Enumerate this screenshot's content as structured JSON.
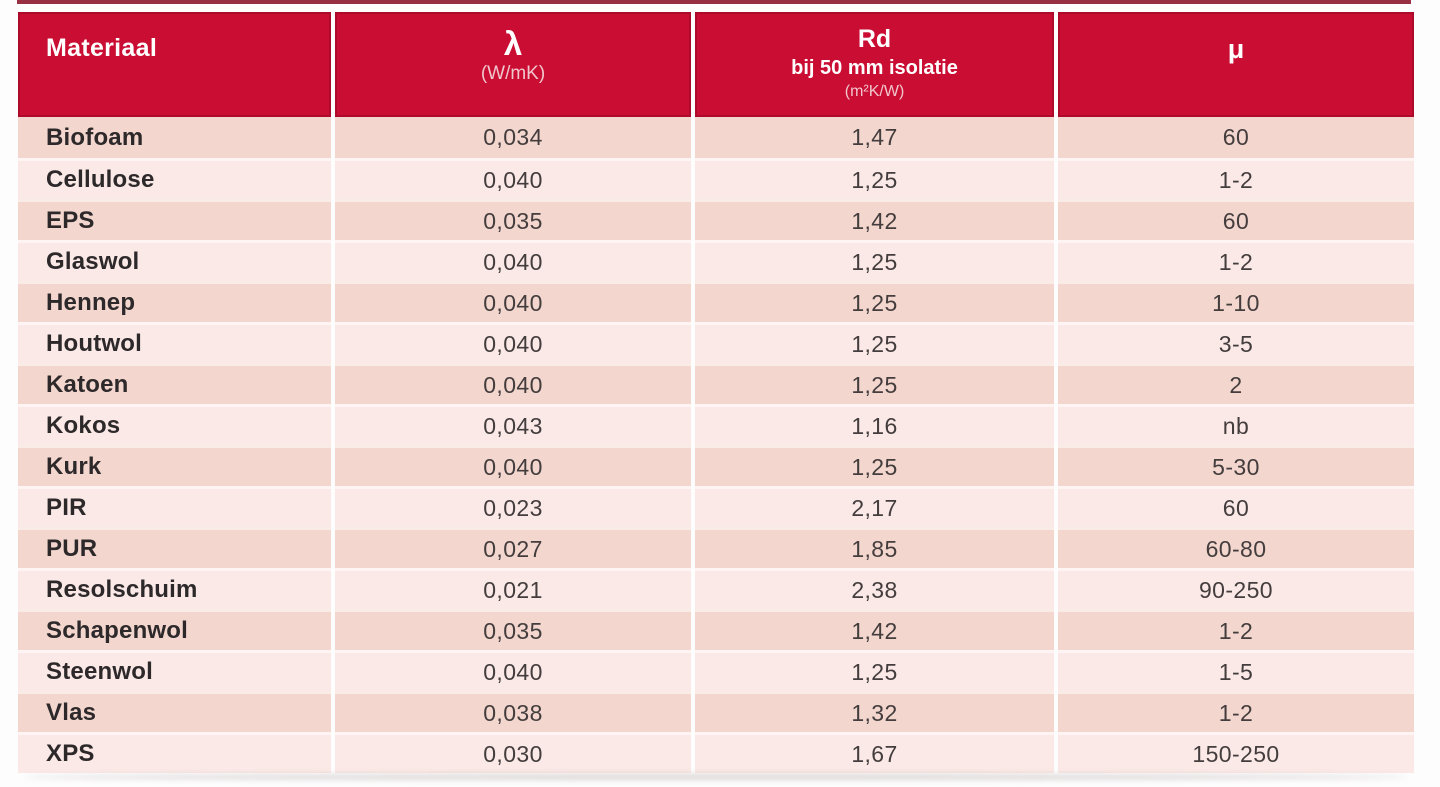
{
  "colors": {
    "background": "#fdfdfd",
    "accent": "#ca0d32",
    "accent_dark": "#8e1e33",
    "row_odd": "#f3d6cd",
    "row_even": "#fae9e6",
    "header_sub": "#f0c6cd",
    "text_dark": "#2d292b",
    "text_num": "#443d3e"
  },
  "table": {
    "header": {
      "materiaal": {
        "title": "Materiaal"
      },
      "lambda": {
        "title": "λ",
        "unit": "(W/mK)"
      },
      "rd": {
        "title": "Rd",
        "subtitle": "bij 50 mm isolatie",
        "unit": "(m²K/W)"
      },
      "mu": {
        "title": "μ"
      }
    },
    "rows": [
      {
        "materiaal": "Biofoam",
        "lambda": "0,034",
        "rd": "1,47",
        "mu": "60"
      },
      {
        "materiaal": "Cellulose",
        "lambda": "0,040",
        "rd": "1,25",
        "mu": "1-2"
      },
      {
        "materiaal": "EPS",
        "lambda": "0,035",
        "rd": "1,42",
        "mu": "60"
      },
      {
        "materiaal": "Glaswol",
        "lambda": "0,040",
        "rd": "1,25",
        "mu": "1-2"
      },
      {
        "materiaal": "Hennep",
        "lambda": "0,040",
        "rd": "1,25",
        "mu": "1-10"
      },
      {
        "materiaal": "Houtwol",
        "lambda": "0,040",
        "rd": "1,25",
        "mu": "3-5"
      },
      {
        "materiaal": "Katoen",
        "lambda": "0,040",
        "rd": "1,25",
        "mu": "2"
      },
      {
        "materiaal": "Kokos",
        "lambda": "0,043",
        "rd": "1,16",
        "mu": "nb"
      },
      {
        "materiaal": "Kurk",
        "lambda": "0,040",
        "rd": "1,25",
        "mu": "5-30"
      },
      {
        "materiaal": "PIR",
        "lambda": "0,023",
        "rd": "2,17",
        "mu": "60"
      },
      {
        "materiaal": "PUR",
        "lambda": "0,027",
        "rd": "1,85",
        "mu": "60-80"
      },
      {
        "materiaal": "Resolschuim",
        "lambda": "0,021",
        "rd": "2,38",
        "mu": "90-250"
      },
      {
        "materiaal": "Schapenwol",
        "lambda": "0,035",
        "rd": "1,42",
        "mu": "1-2"
      },
      {
        "materiaal": "Steenwol",
        "lambda": "0,040",
        "rd": "1,25",
        "mu": "1-5"
      },
      {
        "materiaal": "Vlas",
        "lambda": "0,038",
        "rd": "1,32",
        "mu": "1-2"
      },
      {
        "materiaal": "XPS",
        "lambda": "0,030",
        "rd": "1,67",
        "mu": "150-250"
      }
    ]
  },
  "chart_data": {
    "type": "table",
    "title": "",
    "columns": [
      "Materiaal",
      "λ (W/mK)",
      "Rd bij 50 mm isolatie (m²K/W)",
      "μ"
    ],
    "rows": [
      [
        "Biofoam",
        "0,034",
        "1,47",
        "60"
      ],
      [
        "Cellulose",
        "0,040",
        "1,25",
        "1-2"
      ],
      [
        "EPS",
        "0,035",
        "1,42",
        "60"
      ],
      [
        "Glaswol",
        "0,040",
        "1,25",
        "1-2"
      ],
      [
        "Hennep",
        "0,040",
        "1,25",
        "1-10"
      ],
      [
        "Houtwol",
        "0,040",
        "1,25",
        "3-5"
      ],
      [
        "Katoen",
        "0,040",
        "1,25",
        "2"
      ],
      [
        "Kokos",
        "0,043",
        "1,16",
        "nb"
      ],
      [
        "Kurk",
        "0,040",
        "1,25",
        "5-30"
      ],
      [
        "PIR",
        "0,023",
        "2,17",
        "60"
      ],
      [
        "PUR",
        "0,027",
        "1,85",
        "60-80"
      ],
      [
        "Resolschuim",
        "0,021",
        "2,38",
        "90-250"
      ],
      [
        "Schapenwol",
        "0,035",
        "1,42",
        "1-2"
      ],
      [
        "Steenwol",
        "0,040",
        "1,25",
        "1-5"
      ],
      [
        "Vlas",
        "0,038",
        "1,32",
        "1-2"
      ],
      [
        "XPS",
        "0,030",
        "1,67",
        "150-250"
      ]
    ]
  }
}
